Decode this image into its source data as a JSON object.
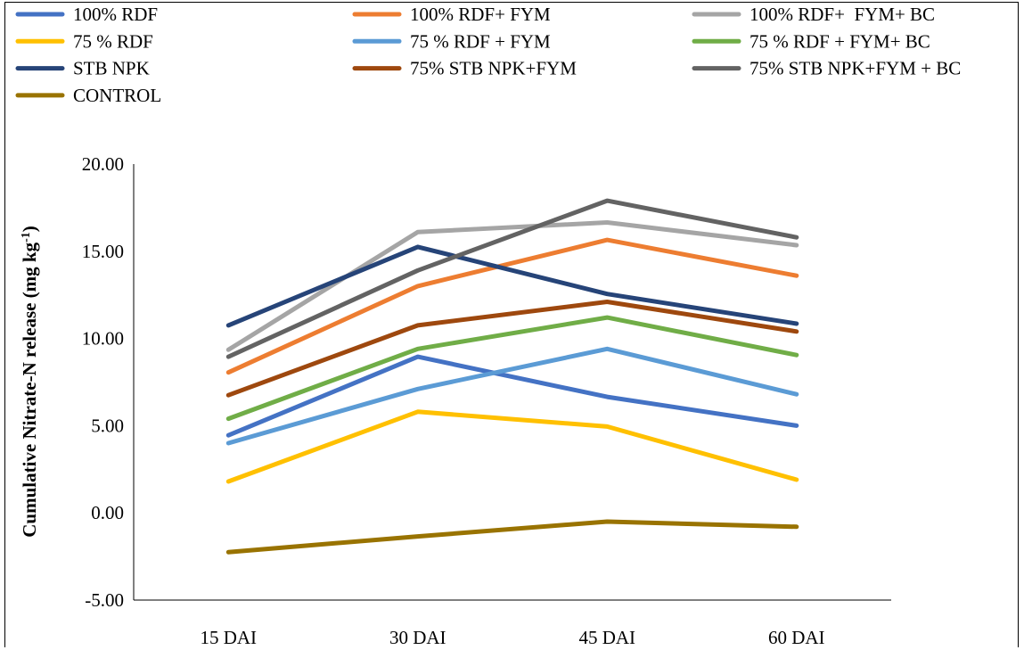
{
  "chart_data": {
    "type": "line",
    "title": "",
    "xlabel": "",
    "ylabel": "Cumulative Nitrate-N release (mg kg",
    "ylabel_superscript": "-1",
    "ylabel_close": ")",
    "categories": [
      "15 DAI",
      "30 DAI",
      "45 DAI",
      "60 DAI"
    ],
    "ylim": [
      -5,
      20
    ],
    "y_ticks": [
      20,
      15,
      10,
      5,
      0,
      -5
    ],
    "y_tick_labels": [
      "20.00",
      "15.00",
      "10.00",
      "5.00",
      "0.00",
      "-5.00"
    ],
    "grid": false,
    "legend_position": "top",
    "series": [
      {
        "name": "100% RDF",
        "color": "#4472C4",
        "values": [
          4.45,
          8.95,
          6.65,
          5.0
        ]
      },
      {
        "name": "100% RDF+ FYM",
        "color": "#ED7D31",
        "values": [
          8.05,
          13.0,
          15.65,
          13.6
        ]
      },
      {
        "name": "100% RDF+  FYM+ BC",
        "color": "#A5A5A5",
        "values": [
          9.35,
          16.1,
          16.65,
          15.35
        ]
      },
      {
        "name": "75 % RDF",
        "color": "#FFC000",
        "values": [
          1.8,
          5.8,
          4.95,
          1.9
        ]
      },
      {
        "name": "75 % RDF + FYM",
        "color": "#5B9BD5",
        "values": [
          4.0,
          7.1,
          9.4,
          6.8
        ]
      },
      {
        "name": "75 % RDF + FYM+ BC",
        "color": "#70AD47",
        "values": [
          5.4,
          9.4,
          11.2,
          9.05
        ]
      },
      {
        "name": "STB NPK",
        "color": "#264478",
        "values": [
          10.75,
          15.25,
          12.55,
          10.85
        ]
      },
      {
        "name": "75% STB NPK+FYM",
        "color": "#9E480E",
        "values": [
          6.75,
          10.75,
          12.1,
          10.4
        ]
      },
      {
        "name": "75% STB NPK+FYM + BC",
        "color": "#636363",
        "values": [
          8.95,
          13.9,
          17.9,
          15.8
        ]
      },
      {
        "name": "CONTROL",
        "color": "#997300",
        "values": [
          -2.25,
          -1.35,
          -0.5,
          -0.8
        ]
      }
    ]
  }
}
